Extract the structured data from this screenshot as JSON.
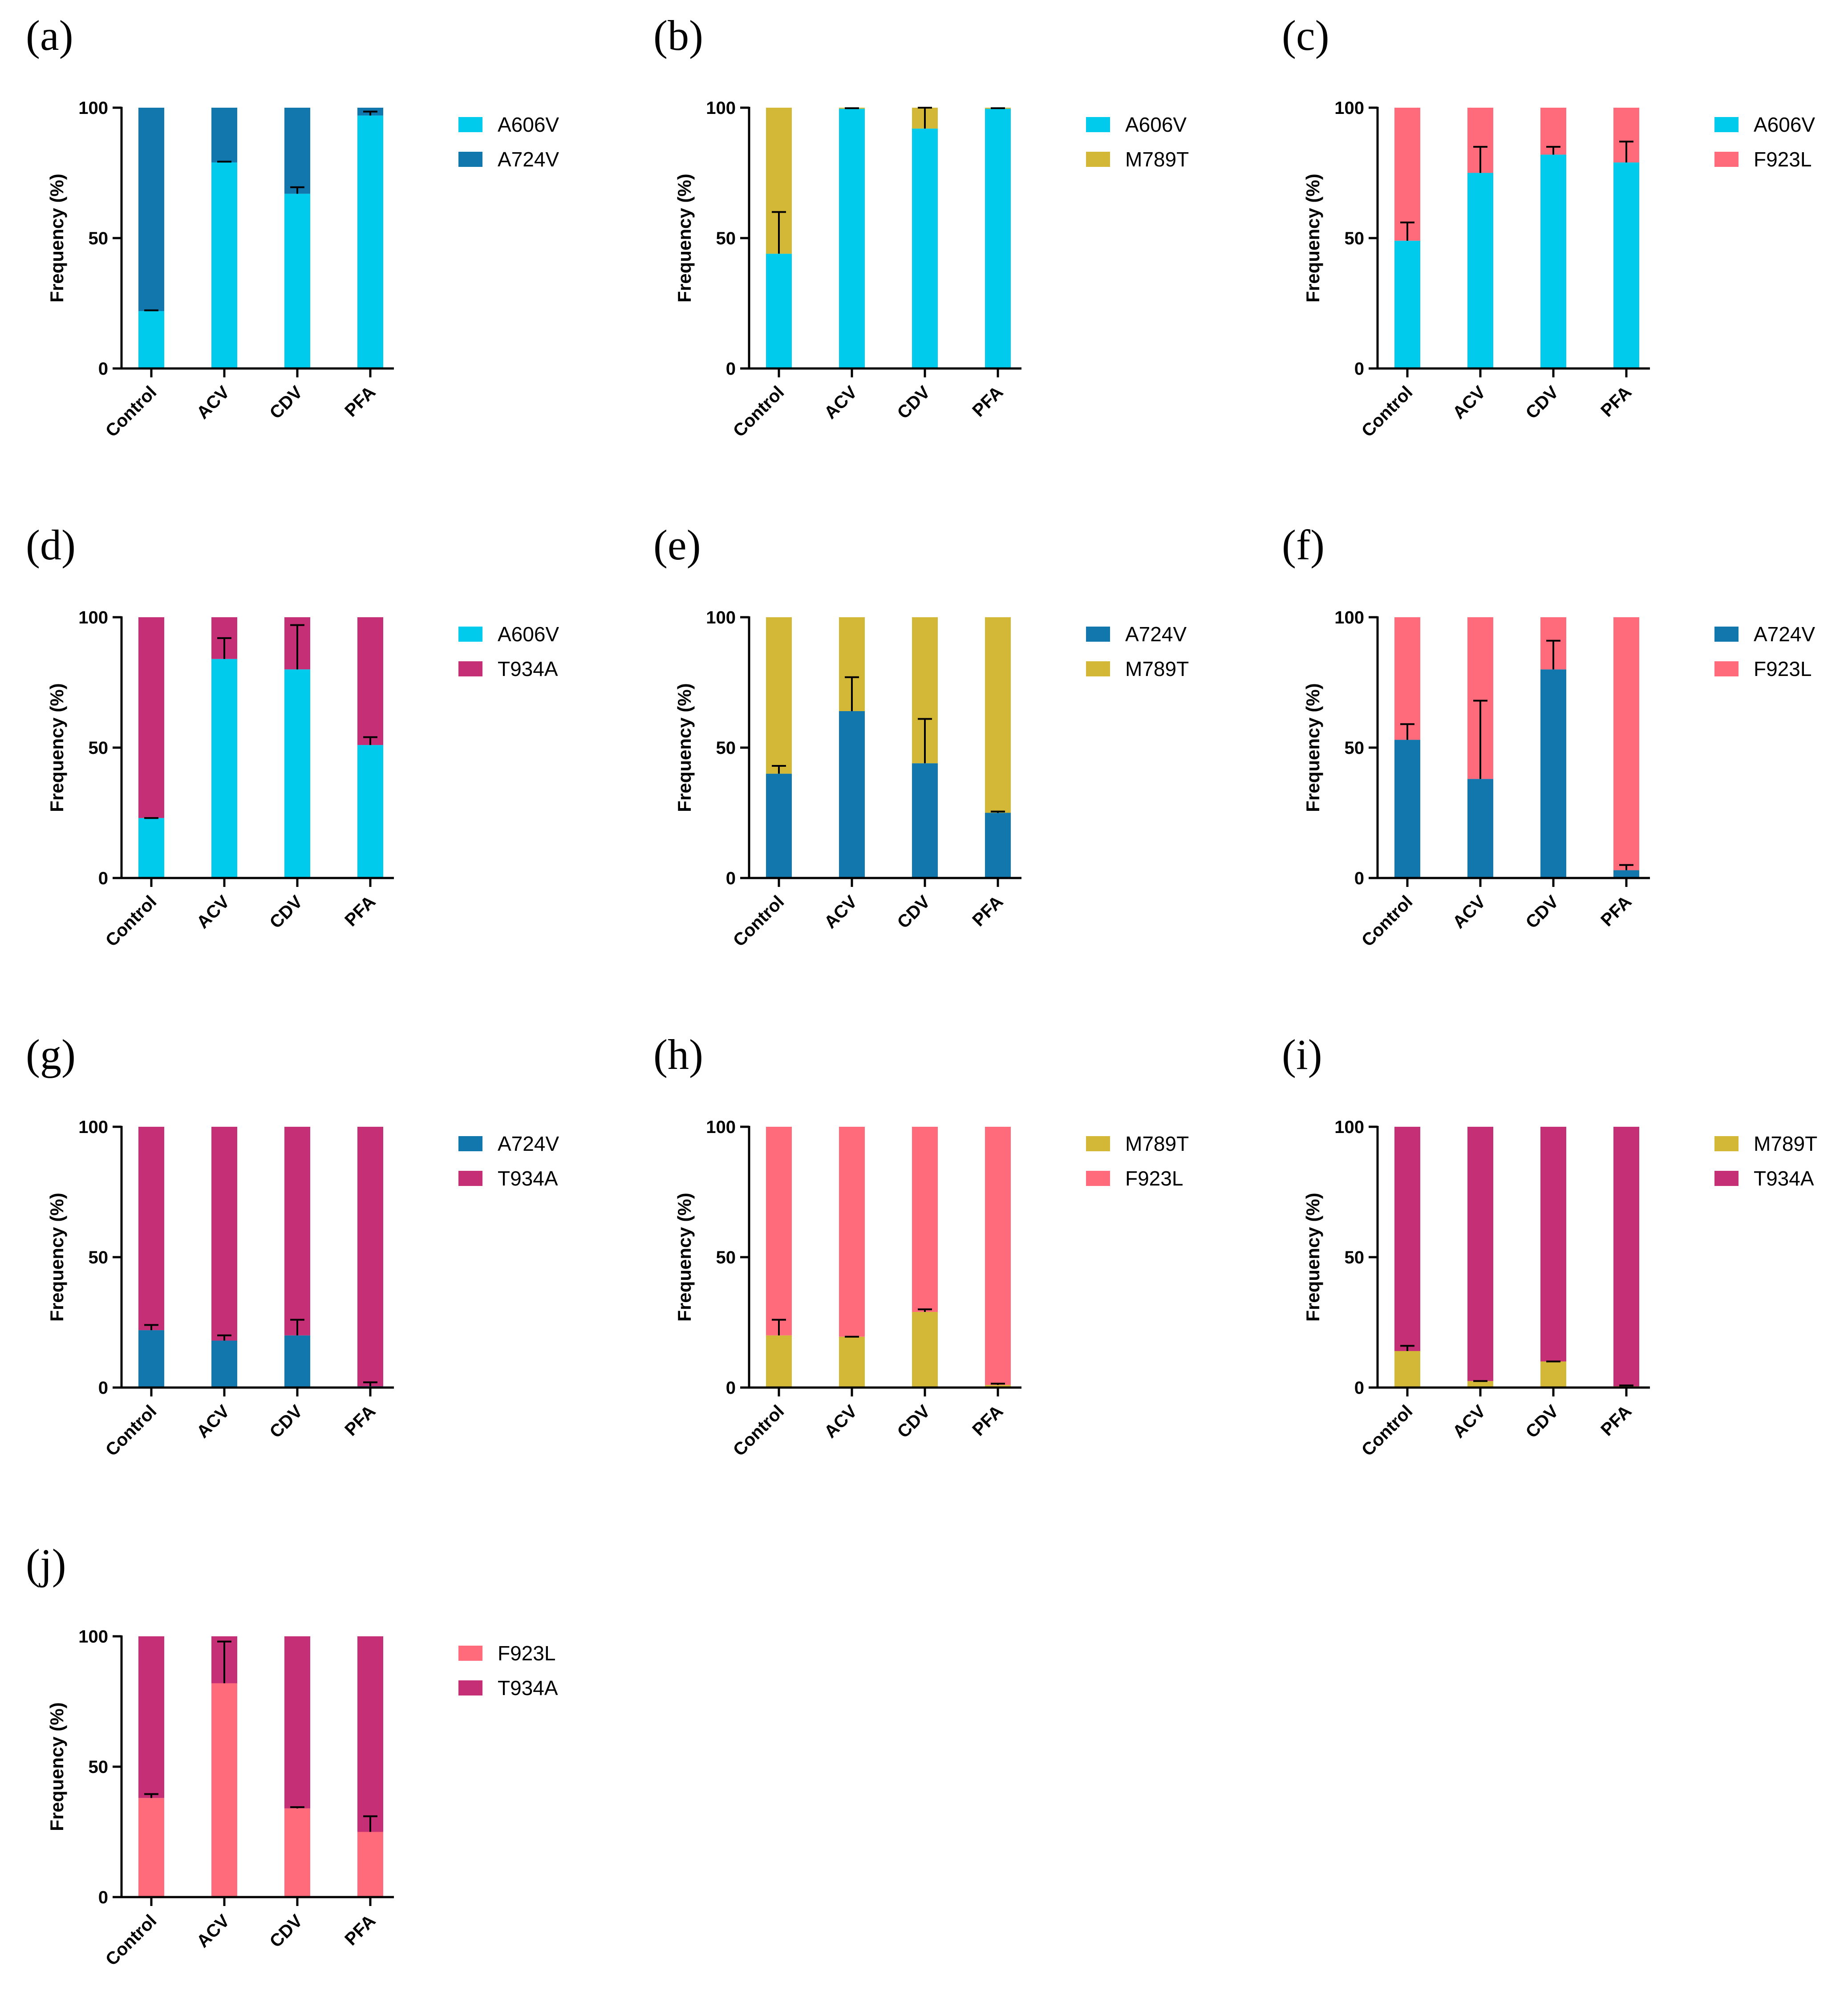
{
  "colors": {
    "A606V": "#00cbec",
    "A724V": "#1177ad",
    "M789T": "#d3b736",
    "F923L": "#ff6b7a",
    "T934A": "#c52f75"
  },
  "chart_data": [
    {
      "type": "bar",
      "stacked": true,
      "panel": "(a)",
      "categories": [
        "Control",
        "ACV",
        "CDV",
        "PFA"
      ],
      "ylabel": "Frequency (%)",
      "yticks": [
        "0",
        "50",
        "100"
      ],
      "ylim": [
        0,
        100
      ],
      "series": [
        {
          "name": "A606V",
          "values": [
            22,
            79,
            67,
            97
          ],
          "error": [
            0.3,
            0.3,
            2.5,
            1.5
          ]
        },
        {
          "name": "A724V",
          "values": [
            78,
            21,
            33,
            3
          ]
        }
      ]
    },
    {
      "type": "bar",
      "stacked": true,
      "panel": "(b)",
      "categories": [
        "Control",
        "ACV",
        "CDV",
        "PFA"
      ],
      "ylabel": "Frequency (%)",
      "yticks": [
        "0",
        "50",
        "100"
      ],
      "ylim": [
        0,
        100
      ],
      "series": [
        {
          "name": "A606V",
          "values": [
            44,
            99.6,
            92,
            99.6
          ],
          "error": [
            16,
            0.2,
            8,
            0.2
          ]
        },
        {
          "name": "M789T",
          "values": [
            56,
            0.4,
            8,
            0.4
          ]
        }
      ]
    },
    {
      "type": "bar",
      "stacked": true,
      "panel": "(c)",
      "categories": [
        "Control",
        "ACV",
        "CDV",
        "PFA"
      ],
      "ylabel": "Frequency (%)",
      "yticks": [
        "0",
        "50",
        "100"
      ],
      "ylim": [
        0,
        100
      ],
      "series": [
        {
          "name": "A606V",
          "values": [
            49,
            75,
            82,
            79
          ],
          "error": [
            7,
            10,
            3,
            8
          ]
        },
        {
          "name": "F923L",
          "values": [
            51,
            25,
            18,
            21
          ]
        }
      ]
    },
    {
      "type": "bar",
      "stacked": true,
      "panel": "(d)",
      "categories": [
        "Control",
        "ACV",
        "CDV",
        "PFA"
      ],
      "ylabel": "Frequency (%)",
      "yticks": [
        "0",
        "50",
        "100"
      ],
      "ylim": [
        0,
        100
      ],
      "series": [
        {
          "name": "A606V",
          "values": [
            23,
            84,
            80,
            51
          ],
          "error": [
            0,
            8,
            17,
            3
          ]
        },
        {
          "name": "T934A",
          "values": [
            77,
            16,
            20,
            49
          ]
        }
      ]
    },
    {
      "type": "bar",
      "stacked": true,
      "panel": "(e)",
      "categories": [
        "Control",
        "ACV",
        "CDV",
        "PFA"
      ],
      "ylabel": "Frequency (%)",
      "yticks": [
        "0",
        "50",
        "100"
      ],
      "ylim": [
        0,
        100
      ],
      "series": [
        {
          "name": "A724V",
          "values": [
            40,
            64,
            44,
            25
          ],
          "error": [
            3,
            13,
            17,
            0.5
          ]
        },
        {
          "name": "M789T",
          "values": [
            60,
            36,
            56,
            75
          ]
        }
      ]
    },
    {
      "type": "bar",
      "stacked": true,
      "panel": "(f)",
      "categories": [
        "Control",
        "ACV",
        "CDV",
        "PFA"
      ],
      "ylabel": "Frequency (%)",
      "yticks": [
        "0",
        "50",
        "100"
      ],
      "ylim": [
        0,
        100
      ],
      "series": [
        {
          "name": "A724V",
          "values": [
            53,
            38,
            80,
            3
          ],
          "error": [
            6,
            30,
            11,
            2
          ]
        },
        {
          "name": "F923L",
          "values": [
            47,
            62,
            20,
            97
          ]
        }
      ]
    },
    {
      "type": "bar",
      "stacked": true,
      "panel": "(g)",
      "categories": [
        "Control",
        "ACV",
        "CDV",
        "PFA"
      ],
      "ylabel": "Frequency (%)",
      "yticks": [
        "0",
        "50",
        "100"
      ],
      "ylim": [
        0,
        100
      ],
      "series": [
        {
          "name": "A724V",
          "values": [
            22,
            18,
            20,
            0.5
          ],
          "error": [
            2,
            2,
            6,
            1.5
          ]
        },
        {
          "name": "T934A",
          "values": [
            78,
            82,
            80,
            99.5
          ]
        }
      ]
    },
    {
      "type": "bar",
      "stacked": true,
      "panel": "(h)",
      "categories": [
        "Control",
        "ACV",
        "CDV",
        "PFA"
      ],
      "ylabel": "Frequency (%)",
      "yticks": [
        "0",
        "50",
        "100"
      ],
      "ylim": [
        0,
        100
      ],
      "series": [
        {
          "name": "M789T",
          "values": [
            20,
            19.5,
            29,
            1
          ],
          "error": [
            6,
            0,
            1,
            0.5
          ]
        },
        {
          "name": "F923L",
          "values": [
            80,
            80.5,
            71,
            99
          ]
        }
      ]
    },
    {
      "type": "bar",
      "stacked": true,
      "panel": "(i)",
      "categories": [
        "Control",
        "ACV",
        "CDV",
        "PFA"
      ],
      "ylabel": "Frequency (%)",
      "yticks": [
        "0",
        "50",
        "100"
      ],
      "ylim": [
        0,
        100
      ],
      "series": [
        {
          "name": "M789T",
          "values": [
            14,
            2.5,
            10,
            0.5
          ],
          "error": [
            2,
            0,
            0,
            0.3
          ]
        },
        {
          "name": "T934A",
          "values": [
            86,
            97.5,
            90,
            99.5
          ]
        }
      ]
    },
    {
      "type": "bar",
      "stacked": true,
      "panel": "(j)",
      "categories": [
        "Control",
        "ACV",
        "CDV",
        "PFA"
      ],
      "ylabel": "Frequency (%)",
      "yticks": [
        "0",
        "50",
        "100"
      ],
      "ylim": [
        0,
        100
      ],
      "series": [
        {
          "name": "F923L",
          "values": [
            38,
            82,
            34,
            25
          ],
          "error": [
            1.5,
            16,
            0.5,
            6
          ]
        },
        {
          "name": "T934A",
          "values": [
            62,
            18,
            66,
            75
          ]
        }
      ]
    }
  ]
}
